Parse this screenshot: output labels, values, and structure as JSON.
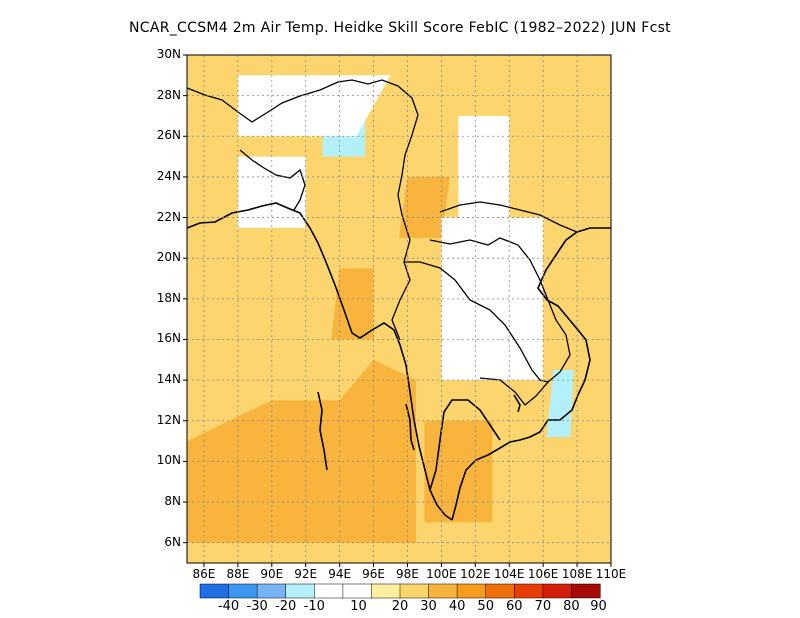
{
  "title": "NCAR_CCSM4  2m Air Temp. Heidke Skill Score FebIC (1982–2022) JUN Fcst",
  "chart_data": {
    "type": "heatmap",
    "title": "NCAR_CCSM4  2m Air Temp. Heidke Skill Score FebIC (1982–2022) JUN Fcst",
    "lon_range": [
      85,
      110
    ],
    "lat_range": [
      5,
      30
    ],
    "lon_ticks": [
      "86E",
      "88E",
      "90E",
      "92E",
      "94E",
      "96E",
      "98E",
      "100E",
      "102E",
      "104E",
      "106E",
      "108E",
      "110E"
    ],
    "lat_ticks": [
      "6N",
      "8N",
      "10N",
      "12N",
      "14N",
      "16N",
      "18N",
      "20N",
      "22N",
      "24N",
      "26N",
      "28N",
      "30N"
    ],
    "grid": true,
    "colorbar": {
      "placement": "bottom",
      "labels": [
        "-40",
        "-30",
        "-20",
        "-10",
        "10",
        "20",
        "30",
        "40",
        "50",
        "60",
        "70",
        "80",
        "90"
      ],
      "colors": [
        "#1e6ee6",
        "#3c96f0",
        "#78b4f5",
        "#b4f0fa",
        "#ffffff",
        "#fff0a0",
        "#fcd56e",
        "#f8b43c",
        "#f59b1e",
        "#f06e0a",
        "#ea3c08",
        "#d21e08",
        "#a50a06"
      ]
    },
    "regions": [
      {
        "name": "south-west-sea-warm",
        "level": 40,
        "points": [
          [
            85,
            6
          ],
          [
            94,
            6
          ],
          [
            94,
            13
          ],
          [
            90,
            13
          ],
          [
            85,
            11
          ]
        ]
      },
      {
        "name": "west-sea-warm-core",
        "level": 40,
        "points": [
          [
            85,
            8
          ],
          [
            90,
            8
          ],
          [
            90,
            10.5
          ],
          [
            85,
            10.5
          ]
        ]
      },
      {
        "name": "andaman-warm",
        "level": 40,
        "points": [
          [
            94,
            6
          ],
          [
            98.5,
            6
          ],
          [
            98.5,
            14
          ],
          [
            96,
            15
          ],
          [
            94,
            13
          ]
        ]
      },
      {
        "name": "myanmar-warm",
        "level": 40,
        "points": [
          [
            93.5,
            16
          ],
          [
            96,
            16
          ],
          [
            96,
            19.5
          ],
          [
            94,
            19.5
          ]
        ]
      },
      {
        "name": "yunnan-warm",
        "level": 40,
        "points": [
          [
            97.5,
            21
          ],
          [
            100,
            21
          ],
          [
            100.5,
            24
          ],
          [
            98,
            24
          ]
        ]
      },
      {
        "name": "guangxi-warm",
        "level": 30,
        "points": [
          [
            104,
            23
          ],
          [
            106,
            23
          ],
          [
            106,
            26
          ],
          [
            104,
            26
          ]
        ]
      },
      {
        "name": "thailand-warm",
        "level": 40,
        "points": [
          [
            99,
            7
          ],
          [
            103,
            7
          ],
          [
            103,
            12
          ],
          [
            99,
            12
          ]
        ]
      },
      {
        "name": "tibet-cool",
        "level": -10,
        "points": [
          [
            93,
            25
          ],
          [
            95.5,
            25
          ],
          [
            95.5,
            27
          ],
          [
            93,
            27
          ]
        ]
      },
      {
        "name": "vietnam-cool",
        "level": -10,
        "points": [
          [
            106.2,
            11.2
          ],
          [
            107.6,
            11.2
          ],
          [
            107.8,
            14.5
          ],
          [
            106.6,
            14.5
          ]
        ]
      },
      {
        "name": "laos-neutral",
        "level": 10,
        "points": [
          [
            100,
            14
          ],
          [
            106,
            14
          ],
          [
            106,
            22
          ],
          [
            100,
            22
          ]
        ]
      },
      {
        "name": "india-north-neutral",
        "level": 10,
        "points": [
          [
            88,
            26
          ],
          [
            95,
            26
          ],
          [
            97,
            29
          ],
          [
            88,
            29
          ]
        ]
      },
      {
        "name": "bangladesh-neutral",
        "level": 10,
        "points": [
          [
            88,
            21.5
          ],
          [
            92,
            21.5
          ],
          [
            92,
            25
          ],
          [
            88,
            25
          ]
        ]
      },
      {
        "name": "china-south-neutral",
        "level": 10,
        "points": [
          [
            101,
            22
          ],
          [
            104,
            22
          ],
          [
            104,
            27
          ],
          [
            101,
            27
          ]
        ]
      }
    ]
  }
}
